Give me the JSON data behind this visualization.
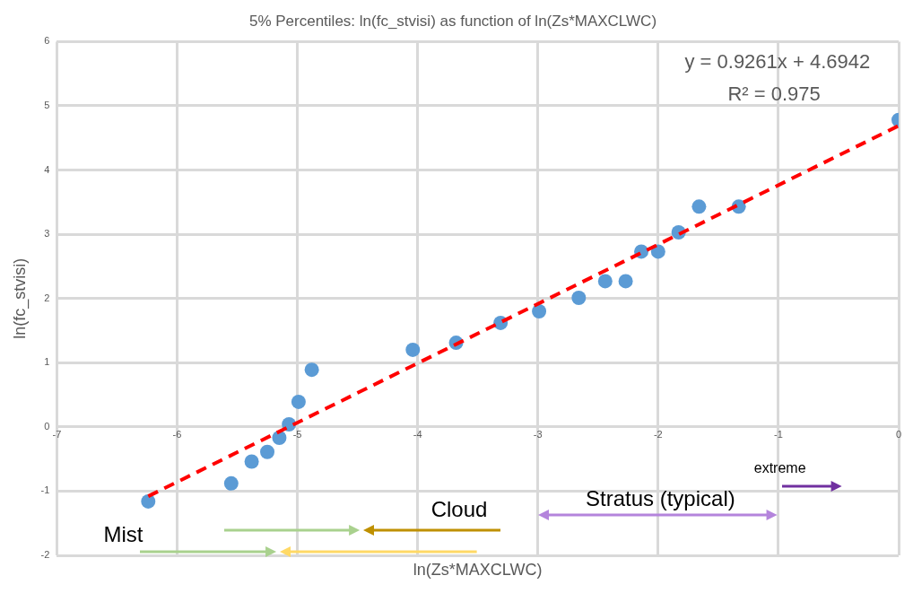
{
  "chart_data": {
    "type": "scatter",
    "title": "5% Percentiles: ln(fc_stvisi) as function of ln(Zs*MAXCLWC)",
    "xlabel": "ln(Zs*MAXCLWC)",
    "ylabel": "ln(fc_stvisi)",
    "xlim": [
      -7,
      0
    ],
    "xticks": [
      -7,
      -6,
      -5,
      -4,
      -3,
      -2,
      -1,
      0
    ],
    "ylim": [
      -2,
      6
    ],
    "yticks": [
      -2,
      -1,
      0,
      1,
      2,
      3,
      4,
      5,
      6
    ],
    "grid": true,
    "marker": "circle",
    "series": [
      {
        "type": "scatter",
        "color": "#5b9bd5",
        "x": [
          -6.24,
          -5.55,
          -5.38,
          -5.25,
          -5.15,
          -5.07,
          -4.99,
          -4.88,
          -4.04,
          -3.68,
          -3.31,
          -2.99,
          -2.66,
          -2.44,
          -2.27,
          -2.14,
          -2.0,
          -1.83,
          -1.66,
          -1.33,
          0
        ],
        "values": [
          -1.16,
          -0.88,
          -0.54,
          -0.39,
          -0.17,
          0.04,
          0.39,
          0.89,
          1.2,
          1.31,
          1.62,
          1.8,
          2.01,
          2.27,
          2.27,
          2.73,
          2.73,
          3.03,
          3.43,
          3.43,
          4.78
        ]
      },
      {
        "type": "line",
        "color": "#ff0000",
        "line_style": "dashed",
        "marker": "none",
        "x": [
          -6.24,
          0
        ],
        "values": [
          -1.08,
          4.69
        ]
      }
    ],
    "annotations": [
      "y = 0.9261x + 4.6942",
      "R² = 0.975",
      "Mist",
      "Cloud",
      "Stratus (typical)",
      "extreme"
    ]
  }
}
